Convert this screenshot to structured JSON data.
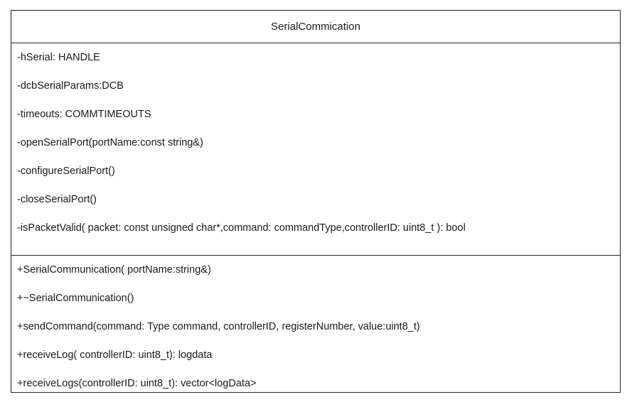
{
  "class": {
    "name": "SerialCommication",
    "private_members": [
      "-hSerial: HANDLE",
      "-dcbSerialParams:DCB",
      "-timeouts: COMMTIMEOUTS",
      "-openSerialPort(portName:const string&)",
      "-configureSerialPort()",
      "-closeSerialPort()",
      "-isPacketValid( packet: const unsigned char*,command: commandType,controllerID: uint8_t ): bool"
    ],
    "public_members": [
      "+SerialCommunication( portName:string&)",
      "+~SerialCommunication()",
      "+sendCommand(command: Type command,  controllerID,  registerNumber,  value:uint8_t)",
      "+receiveLog( controllerID: uint8_t): logdata",
      "+receiveLogs(controllerID: uint8_t): vector<logData>"
    ]
  }
}
